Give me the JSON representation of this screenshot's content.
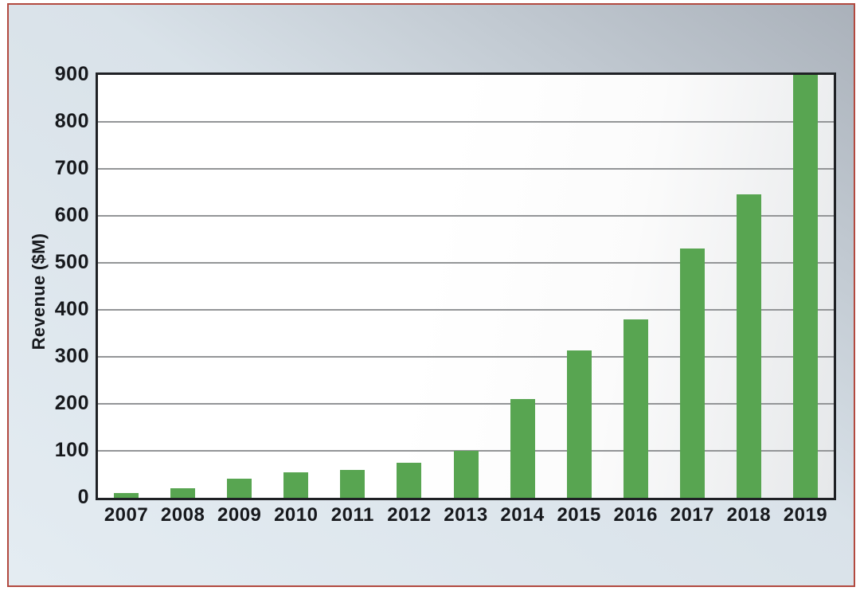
{
  "colors": {
    "bar_fill": "#58a551",
    "frame_border": "#b2493f",
    "plot_border": "#1f2125",
    "gridline": "#939597",
    "matte_light": "#e4ecf2",
    "matte_dark": "#aab1ba",
    "text": "#17191d"
  },
  "chart_data": {
    "type": "bar",
    "title": "",
    "categories": [
      "2007",
      "2008",
      "2009",
      "2010",
      "2011",
      "2012",
      "2013",
      "2014",
      "2015",
      "2016",
      "2017",
      "2018",
      "2019"
    ],
    "values": [
      10,
      20,
      40,
      55,
      60,
      75,
      100,
      210,
      313,
      380,
      530,
      645,
      900
    ],
    "xlabel": "",
    "ylabel": "Revenue ($M)",
    "ylim": [
      0,
      900
    ],
    "yticks": [
      0,
      100,
      200,
      300,
      400,
      500,
      600,
      700,
      800,
      900
    ],
    "grid": "horizontal",
    "legend": "none",
    "bar_color": "#58a551"
  }
}
